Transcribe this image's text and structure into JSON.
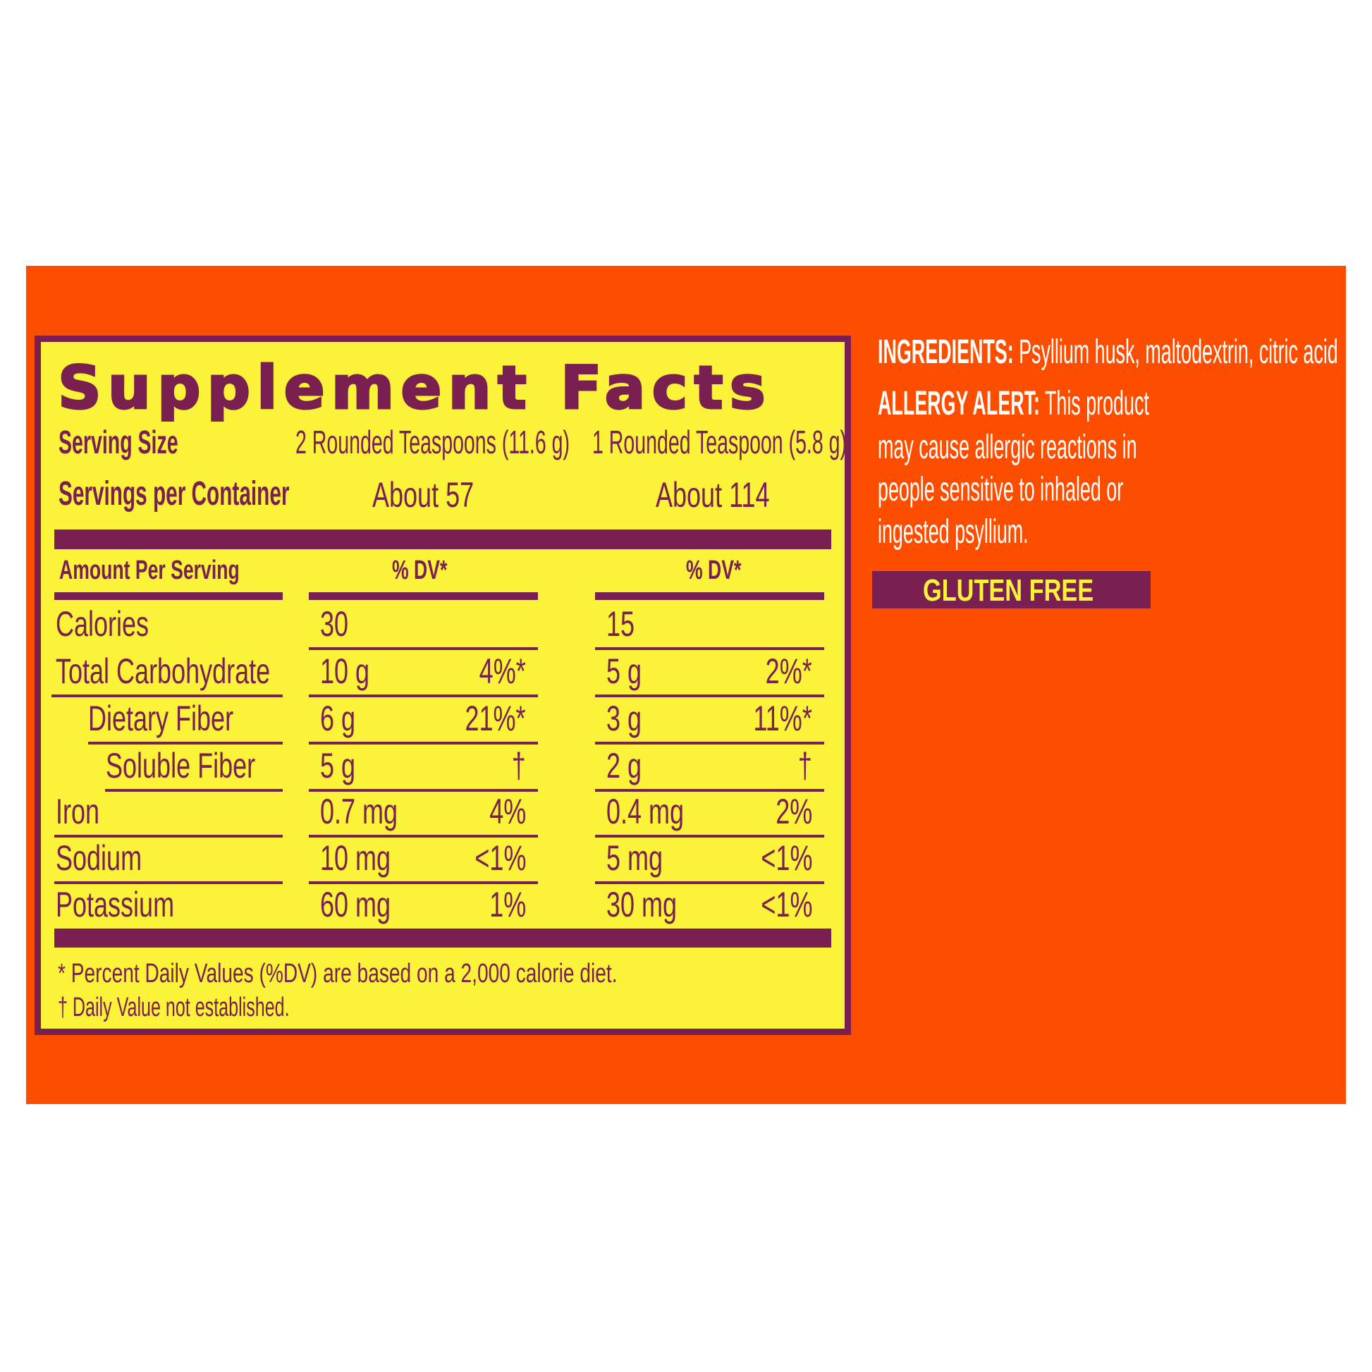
{
  "colors": {
    "background": "#FD4E00",
    "panel": "#FBF23A",
    "accent": "#7A2050",
    "text_light": "#FFFFFF"
  },
  "facts": {
    "title": "Supplement Facts",
    "serving_size_label": "Serving Size",
    "serving_size_1": "2 Rounded Teaspoons (11.6 g)",
    "serving_size_2": "1 Rounded Teaspoon (5.8 g)",
    "servings_label": "Servings per Container",
    "servings_1": "About 57",
    "servings_2": "About 114",
    "amount_header": "Amount Per Serving",
    "dv_header_1": "% DV*",
    "dv_header_2": "% DV*",
    "rows": [
      {
        "label": "Calories",
        "v1": "30",
        "dv1": "",
        "v2": "15",
        "dv2": ""
      },
      {
        "label": "Total Carbohydrate",
        "v1": "10 g",
        "dv1": "4%*",
        "v2": "5 g",
        "dv2": "2%*"
      },
      {
        "label": "Dietary Fiber",
        "v1": "6 g",
        "dv1": "21%*",
        "v2": "3 g",
        "dv2": "11%*"
      },
      {
        "label": "Soluble Fiber",
        "v1": "5 g",
        "dv1": "†",
        "v2": "2 g",
        "dv2": "†"
      },
      {
        "label": "Iron",
        "v1": "0.7 mg",
        "dv1": "4%",
        "v2": "0.4 mg",
        "dv2": "2%"
      },
      {
        "label": "Sodium",
        "v1": "10 mg",
        "dv1": "<1%",
        "v2": "5 mg",
        "dv2": "<1%"
      },
      {
        "label": "Potassium",
        "v1": "60 mg",
        "dv1": "1%",
        "v2": "30 mg",
        "dv2": "<1%"
      }
    ],
    "footnote_1": "* Percent Daily Values (%DV) are based on a 2,000 calorie diet.",
    "footnote_2": "† Daily Value not established."
  },
  "side": {
    "ingredients_label": "INGREDIENTS:",
    "ingredients_text": "Psyllium husk, maltodextrin, citric acid",
    "allergy_label": "ALLERGY ALERT:",
    "allergy_line_1": "This product",
    "allergy_line_2": "may cause allergic reactions in",
    "allergy_line_3": "people sensitive to inhaled or",
    "allergy_line_4": "ingested psyllium.",
    "badge": "GLUTEN FREE"
  }
}
